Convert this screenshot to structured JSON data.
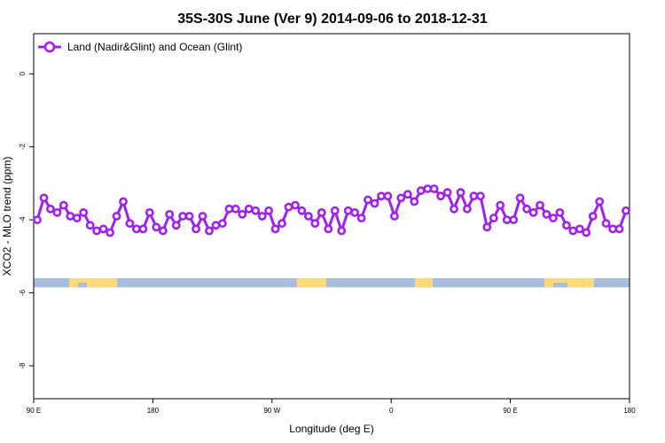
{
  "chart_data": {
    "type": "line",
    "title": "35S-30S June (Ver 9)   2014-09-06 to 2018-12-31",
    "xlabel": "Longitude (deg E)",
    "ylabel": "XCO2 - MLO trend (ppm)",
    "x_tick_labels": [
      "90 E",
      "180",
      "90 W",
      "0",
      "90 E",
      "180"
    ],
    "y_ticks": [
      0,
      -2,
      -4,
      -6,
      -8
    ],
    "y_tick_labels": [
      "0",
      "-2",
      "-4",
      "-6",
      "-8"
    ],
    "ylim": [
      -8.9,
      1.1
    ],
    "grid": false,
    "legend_position": "top-left",
    "series": [
      {
        "name": "Land (Nadir&Glint) and Ocean (Glint)",
        "color": "#a020f0",
        "marker": "open-circle",
        "y": [
          -4.0,
          -3.4,
          -3.7,
          -3.8,
          -3.6,
          -3.9,
          -3.95,
          -3.8,
          -4.15,
          -4.3,
          -4.25,
          -4.35,
          -3.9,
          -3.5,
          -4.1,
          -4.25,
          -4.25,
          -3.8,
          -4.2,
          -4.3,
          -3.85,
          -4.15,
          -3.9,
          -3.9,
          -4.25,
          -3.9,
          -4.3,
          -4.15,
          -4.1,
          -3.7,
          -3.7,
          -3.85,
          -3.7,
          -3.75,
          -3.9,
          -3.75,
          -4.25,
          -4.1,
          -3.65,
          -3.6,
          -3.75,
          -3.9,
          -4.1,
          -3.8,
          -4.25,
          -3.75,
          -4.3,
          -3.75,
          -3.8,
          -3.95,
          -3.45,
          -3.55,
          -3.35,
          -3.35,
          -3.9,
          -3.4,
          -3.3,
          -3.5,
          -3.2,
          -3.15,
          -3.15,
          -3.35,
          -3.25,
          -3.7,
          -3.25,
          -3.7,
          -3.35,
          -3.35,
          -4.2,
          -3.95,
          -3.6,
          -4.0,
          -4.0,
          -3.4,
          -3.7,
          -3.8,
          -3.6,
          -3.85,
          -3.95,
          -3.8,
          -4.15,
          -4.3,
          -4.25,
          -4.35,
          -3.9,
          -3.5,
          -4.1,
          -4.25,
          -4.25,
          -3.75
        ]
      }
    ],
    "surface_strip": {
      "y_top": -5.6,
      "y_bottom": -5.85,
      "ocean_color": "#a6bddb",
      "land_color": "#ffd97a"
    }
  }
}
